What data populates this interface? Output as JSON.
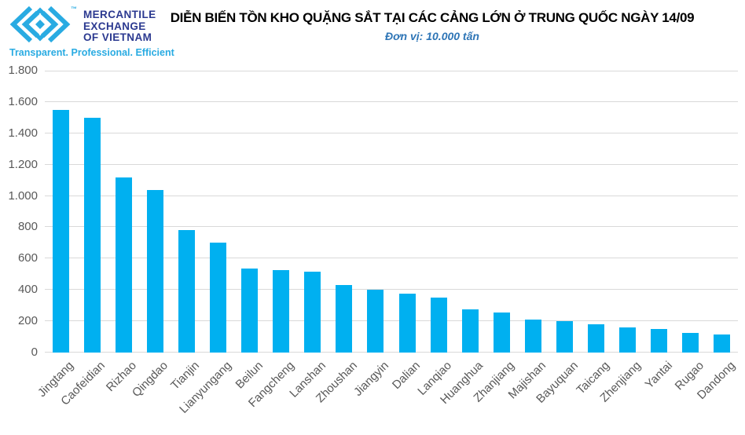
{
  "logo": {
    "trademark": "™",
    "name_line1": "MERCANTILE",
    "name_line2": "EXCHANGE",
    "name_line3": "OF VIETNAM",
    "tagline": "Transparent. Professional. Efficient"
  },
  "colors": {
    "bar": "#00B0F0",
    "gridline": "#D9D9D9",
    "axis_text": "#595959",
    "logo_cyan": "#29ABE2",
    "logo_navy": "#2B3990",
    "subtitle_blue": "#2E75B6",
    "title_black": "#000000"
  },
  "chart_data": {
    "type": "bar",
    "title": "DIỄN BIẾN TỒN KHO QUẶNG SẮT TẠI CÁC CẢNG LỚN Ở TRUNG QUỐC NGÀY 14/09",
    "subtitle": "Đơn vị: 10.000 tấn",
    "unit": "10.000 tấn",
    "date": "14/09",
    "categories": [
      "Jingtang",
      "Caofeidian",
      "Rizhao",
      "Qingdao",
      "Tianjin",
      "Lianyungang",
      "Beilun",
      "Fangcheng",
      "Lanshan",
      "Zhoushan",
      "Jiangyin",
      "Dalian",
      "Lanqiao",
      "Huanghua",
      "Zhanjiang",
      "Majishan",
      "Bayuquan",
      "Taicang",
      "Zhenjiang",
      "Yantai",
      "Rugao",
      "Dandong"
    ],
    "values": [
      1550,
      1500,
      1120,
      1040,
      780,
      700,
      535,
      525,
      515,
      430,
      400,
      375,
      350,
      275,
      255,
      210,
      200,
      180,
      160,
      150,
      125,
      115
    ],
    "xlabel": "",
    "ylabel": "",
    "ylim": [
      0,
      1800
    ],
    "ytick_step": 200,
    "ytick_labels": [
      "0",
      "200",
      "400",
      "600",
      "800",
      "1.000",
      "1.200",
      "1.400",
      "1.600",
      "1.800"
    ],
    "grid": true,
    "legend_position": "none"
  }
}
